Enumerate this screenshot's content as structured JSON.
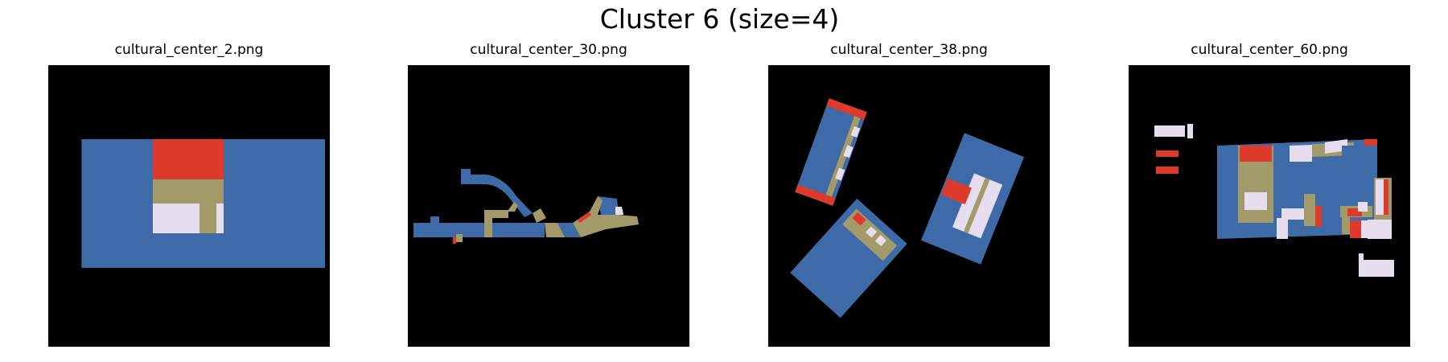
{
  "figure": {
    "title": "Cluster 6 (size=4)"
  },
  "panels": [
    {
      "title": "cultural_center_2.png"
    },
    {
      "title": "cultural_center_30.png"
    },
    {
      "title": "cultural_center_38.png"
    },
    {
      "title": "cultural_center_60.png"
    }
  ],
  "colors": {
    "background": "#000000",
    "blue": "#3e6aa8",
    "red": "#de3a2c",
    "tan": "#a39a6a",
    "lavender": "#e6ddee"
  }
}
